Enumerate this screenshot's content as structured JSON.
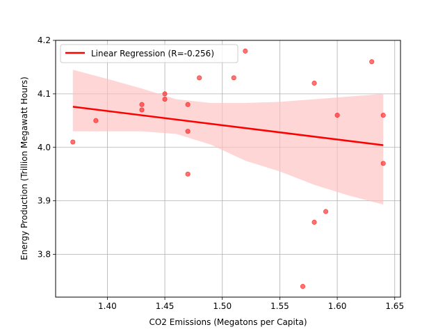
{
  "chart_data": {
    "type": "scatter",
    "title": "",
    "xlabel": "CO2 Emissions (Megatons per Capita)",
    "ylabel": "Energy Production (Trillion Megawatt Hours)",
    "xlim": [
      1.355,
      1.655
    ],
    "ylim": [
      3.72,
      4.2
    ],
    "xticks": [
      1.4,
      1.45,
      1.5,
      1.55,
      1.6,
      1.65
    ],
    "xtick_labels": [
      "1.40",
      "1.45",
      "1.50",
      "1.55",
      "1.60",
      "1.65"
    ],
    "yticks": [
      3.8,
      3.9,
      4.0,
      4.1,
      4.2
    ],
    "ytick_labels": [
      "3.8",
      "3.9",
      "4.0",
      "4.1",
      "4.2"
    ],
    "grid": true,
    "legend_position": "upper-left",
    "series": [
      {
        "name": "",
        "kind": "scatter",
        "color": "#ff0000",
        "x": [
          1.37,
          1.39,
          1.43,
          1.43,
          1.45,
          1.45,
          1.47,
          1.47,
          1.47,
          1.48,
          1.51,
          1.52,
          1.57,
          1.58,
          1.58,
          1.59,
          1.6,
          1.63,
          1.64,
          1.64
        ],
        "y": [
          4.01,
          4.05,
          4.08,
          4.07,
          4.1,
          4.09,
          4.08,
          4.03,
          3.95,
          4.13,
          4.13,
          4.18,
          3.74,
          4.12,
          3.86,
          3.88,
          4.06,
          4.16,
          4.06,
          3.97
        ]
      },
      {
        "name": "Linear Regression (R=-0.256)",
        "kind": "line",
        "color": "#ff0000",
        "x": [
          1.37,
          1.64
        ],
        "y": [
          4.076,
          4.004
        ]
      }
    ],
    "confidence_band": {
      "color": "#ffc0c0",
      "x": [
        1.37,
        1.4,
        1.43,
        1.46,
        1.49,
        1.52,
        1.55,
        1.58,
        1.61,
        1.64
      ],
      "lower": [
        4.03,
        4.03,
        4.03,
        4.025,
        4.005,
        3.975,
        3.955,
        3.93,
        3.91,
        3.893
      ],
      "upper": [
        4.145,
        4.128,
        4.11,
        4.09,
        4.083,
        4.083,
        4.085,
        4.09,
        4.095,
        4.1
      ]
    }
  }
}
